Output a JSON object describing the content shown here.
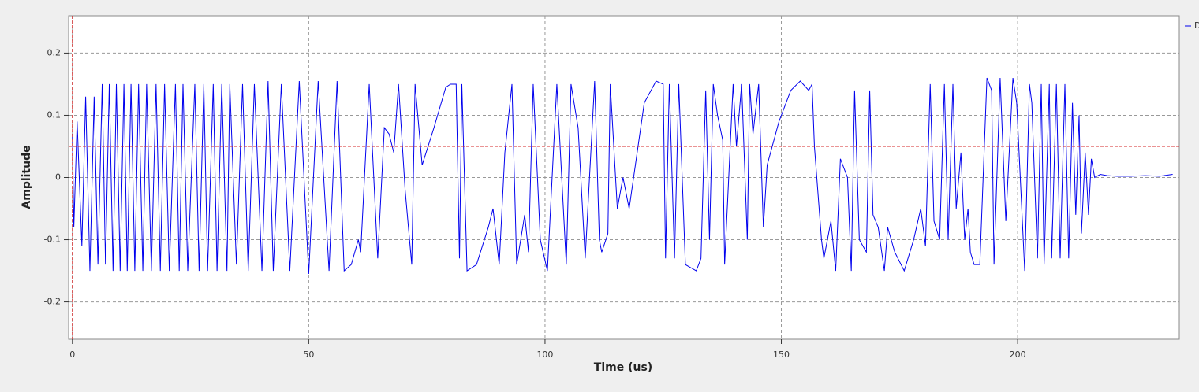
{
  "chart_data": {
    "type": "line",
    "xlabel": "Time (us)",
    "ylabel": "Amplitude",
    "xlim": [
      -0.8,
      234.2
    ],
    "ylim": [
      -0.26,
      0.26
    ],
    "xticks": [
      0,
      50,
      100,
      150,
      200
    ],
    "yticks": [
      -0.2,
      -0.1,
      0,
      0.1,
      0.2
    ],
    "grid": true,
    "trigger_level": 0.05,
    "trigger_time": 0,
    "trigger_color": "#d62728",
    "x": [
      0,
      0.3,
      1.0,
      2.0,
      2.8,
      3.7,
      4.6,
      5.4,
      6.3,
      7.0,
      7.8,
      8.6,
      9.3,
      10.1,
      10.9,
      11.6,
      12.4,
      13.2,
      14.0,
      14.9,
      15.7,
      16.7,
      17.7,
      18.6,
      19.5,
      20.5,
      21.8,
      22.6,
      23.4,
      24.4,
      25.9,
      26.8,
      27.8,
      28.6,
      29.8,
      30.6,
      31.6,
      32.7,
      33.3,
      34.7,
      36.0,
      37.2,
      38.5,
      40.1,
      41.4,
      42.5,
      44.2,
      46.0,
      48.0,
      50.0,
      52.0,
      54.3,
      56.0,
      57.5,
      59.0,
      60.5,
      61.0,
      62.8,
      64.6,
      66.0,
      67.0,
      68.0,
      69.0,
      70.4,
      71.8,
      72.5,
      74.0,
      76.5,
      79.0,
      80.0,
      81.2,
      81.9,
      82.4,
      83.5,
      85.5,
      88.0,
      89.0,
      90.3,
      91.5,
      93.0,
      94.0,
      95.7,
      96.5,
      97.5,
      99.0,
      100.5,
      102.5,
      104.5,
      105.5,
      107.0,
      108.5,
      110.5,
      111.5,
      112.0,
      113.3,
      113.8,
      115.3,
      116.5,
      117.8,
      121.0,
      123.5,
      125.0,
      125.5,
      126.3,
      127.4,
      128.3,
      129.7,
      132.0,
      133.0,
      134.0,
      134.8,
      135.6,
      136.5,
      137.6,
      138.0,
      139.8,
      140.5,
      141.6,
      142.8,
      143.3,
      144.0,
      145.2,
      146.2,
      147.0,
      149.5,
      152.0,
      154.0,
      155.8,
      156.5,
      157.0,
      158.5,
      159.0,
      160.5,
      161.5,
      162.5,
      164.0,
      164.8,
      165.5,
      166.5,
      168.0,
      168.7,
      169.4,
      170.5,
      171.8,
      172.5,
      174.0,
      176.0,
      178.0,
      179.5,
      180.5,
      181.5,
      182.3,
      183.5,
      184.5,
      185.3,
      186.3,
      187.0,
      188.0,
      188.8,
      189.5,
      190.0,
      190.8,
      192.0,
      193.5,
      194.5,
      195.0,
      196.3,
      197.5,
      199.0,
      199.8,
      201.5,
      202.5,
      203.0,
      204.2,
      205.0,
      205.6,
      206.7,
      207.2,
      208.2,
      209.0,
      210.0,
      210.8,
      211.6,
      212.3,
      213.0,
      213.5,
      214.3,
      215.0,
      215.6,
      216.3,
      217.5,
      219,
      221,
      224,
      227,
      230,
      232.8
    ],
    "series": [
      {
        "name": "D",
        "color": "#0000ee",
        "values": [
          0.07,
          -0.08,
          0.09,
          -0.11,
          0.13,
          -0.15,
          0.13,
          -0.14,
          0.15,
          -0.14,
          0.15,
          -0.15,
          0.15,
          -0.15,
          0.15,
          -0.15,
          0.15,
          -0.15,
          0.15,
          -0.15,
          0.15,
          -0.15,
          0.15,
          -0.15,
          0.15,
          -0.15,
          0.15,
          -0.15,
          0.15,
          -0.15,
          0.15,
          -0.15,
          0.15,
          -0.15,
          0.15,
          -0.15,
          0.15,
          -0.15,
          0.15,
          -0.14,
          0.15,
          -0.15,
          0.15,
          -0.15,
          0.155,
          -0.15,
          0.15,
          -0.15,
          0.155,
          -0.155,
          0.155,
          -0.15,
          0.155,
          -0.15,
          -0.14,
          -0.1,
          -0.12,
          0.15,
          -0.13,
          0.08,
          0.07,
          0.04,
          0.15,
          -0.02,
          -0.14,
          0.15,
          0.02,
          0.08,
          0.145,
          0.15,
          0.15,
          -0.13,
          0.15,
          -0.15,
          -0.14,
          -0.08,
          -0.05,
          -0.14,
          0.04,
          0.15,
          -0.14,
          -0.06,
          -0.12,
          0.15,
          -0.1,
          -0.15,
          0.15,
          -0.14,
          0.15,
          0.08,
          -0.13,
          0.155,
          -0.1,
          -0.12,
          -0.09,
          0.15,
          -0.05,
          0.0,
          -0.05,
          0.12,
          0.155,
          0.15,
          -0.13,
          0.15,
          -0.13,
          0.15,
          -0.14,
          -0.15,
          -0.13,
          0.14,
          -0.1,
          0.15,
          0.1,
          0.06,
          -0.14,
          0.15,
          0.05,
          0.15,
          -0.1,
          0.15,
          0.07,
          0.15,
          -0.08,
          0.02,
          0.09,
          0.14,
          0.155,
          0.14,
          0.15,
          0.05,
          -0.1,
          -0.13,
          -0.07,
          -0.15,
          0.03,
          0.0,
          -0.15,
          0.14,
          -0.1,
          -0.12,
          0.14,
          -0.06,
          -0.08,
          -0.15,
          -0.08,
          -0.12,
          -0.15,
          -0.1,
          -0.05,
          -0.11,
          0.15,
          -0.07,
          -0.1,
          0.15,
          -0.1,
          0.15,
          -0.05,
          0.04,
          -0.1,
          -0.05,
          -0.12,
          -0.14,
          -0.14,
          0.16,
          0.14,
          -0.14,
          0.16,
          -0.07,
          0.16,
          0.12,
          -0.15,
          0.15,
          0.12,
          -0.13,
          0.15,
          -0.14,
          0.15,
          -0.13,
          0.15,
          -0.13,
          0.15,
          -0.13,
          0.12,
          -0.06,
          0.1,
          -0.09,
          0.04,
          -0.06,
          0.03,
          0.0,
          0.005,
          0.003,
          0.002,
          0.002,
          0.003,
          0.002,
          0.005
        ]
      }
    ]
  }
}
